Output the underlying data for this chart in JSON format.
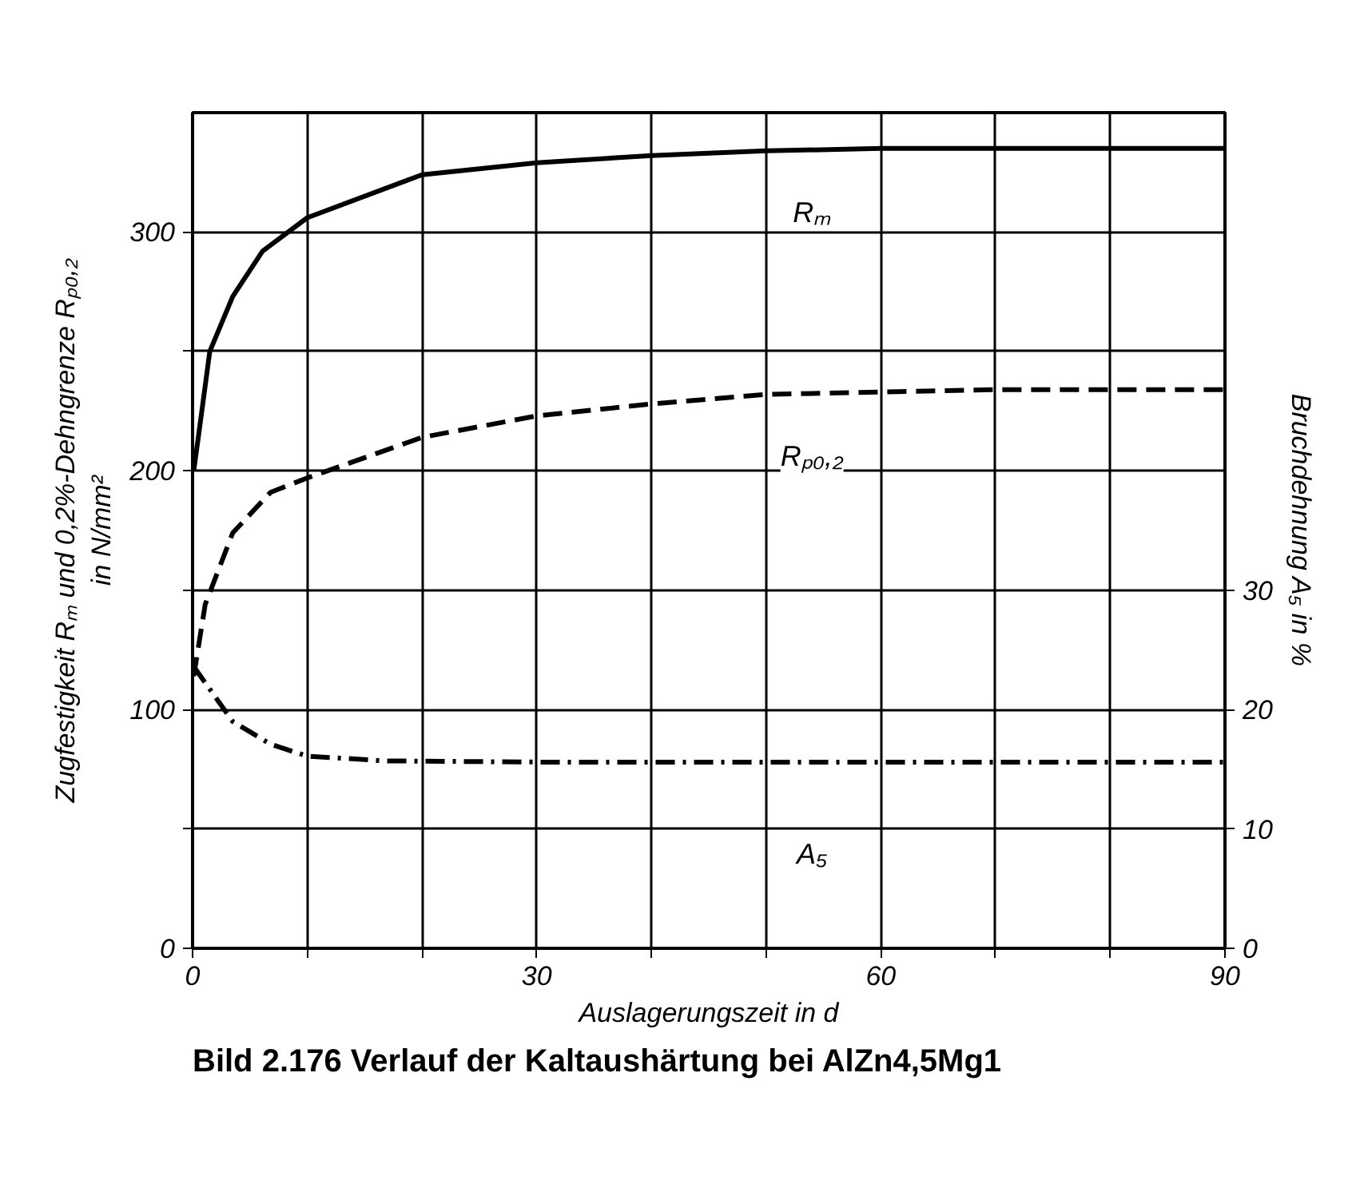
{
  "chart_data": {
    "type": "line",
    "title": "Bild 2.176  Verlauf der Kaltaushärtung bei AlZn4,5Mg1",
    "xlabel": "Auslagerungszeit in d",
    "ylabel": "Zugfestigkeit Rₘ und 0,2%-Dehngrenze Rₚ₀,₂\nin N/mm²",
    "y2label": "Bruchdehnung A₅ in %",
    "xlim": [
      0,
      90
    ],
    "ylim": [
      0,
      350
    ],
    "y2lim": [
      0,
      70
    ],
    "xticks": [
      0,
      {
        "value": 10,
        "label": null
      },
      {
        "value": 20,
        "label": null
      },
      30,
      {
        "value": 40,
        "label": null
      },
      {
        "value": 50,
        "label": null
      },
      60,
      {
        "value": 70,
        "label": null
      },
      {
        "value": 80,
        "label": null
      },
      90
    ],
    "yticks": [
      0,
      {
        "value": 50,
        "label": null
      },
      100,
      {
        "value": 150,
        "label": null
      },
      200,
      {
        "value": 250,
        "label": null
      },
      300
    ],
    "y2ticks": [
      0,
      10,
      20,
      30
    ],
    "grid": true,
    "legend": false,
    "marker": "none",
    "series": [
      {
        "name": "Rₘ",
        "color": "#000000",
        "line_style": "solid",
        "x": [
          0.1,
          0.5,
          1.5,
          3.5,
          6.1,
          10,
          20,
          30,
          40,
          50,
          60,
          70,
          80,
          90
        ],
        "values": [
          200,
          214,
          250,
          273,
          292,
          306,
          324,
          329,
          332,
          334,
          335,
          335,
          335,
          335
        ]
      },
      {
        "name": "Rₚ₀,₂",
        "color": "#000000",
        "line_style": "dashed",
        "x": [
          0.1,
          1.1,
          3.5,
          6.8,
          10,
          20,
          30,
          40,
          50,
          60,
          70,
          80,
          90
        ],
        "values": [
          114,
          144,
          174,
          191,
          197,
          214,
          223,
          228,
          232,
          233,
          234,
          234,
          234
        ]
      },
      {
        "name": "A₅",
        "color": "#000000",
        "line_style": "dashdot",
        "axis": "y2",
        "x": [
          0.1,
          3.5,
          6.8,
          10,
          16.8,
          30,
          50,
          70,
          90
        ],
        "values": [
          23.6,
          19.0,
          17.1,
          16.1,
          15.7,
          15.6,
          15.6,
          15.6,
          15.6
        ]
      }
    ]
  }
}
